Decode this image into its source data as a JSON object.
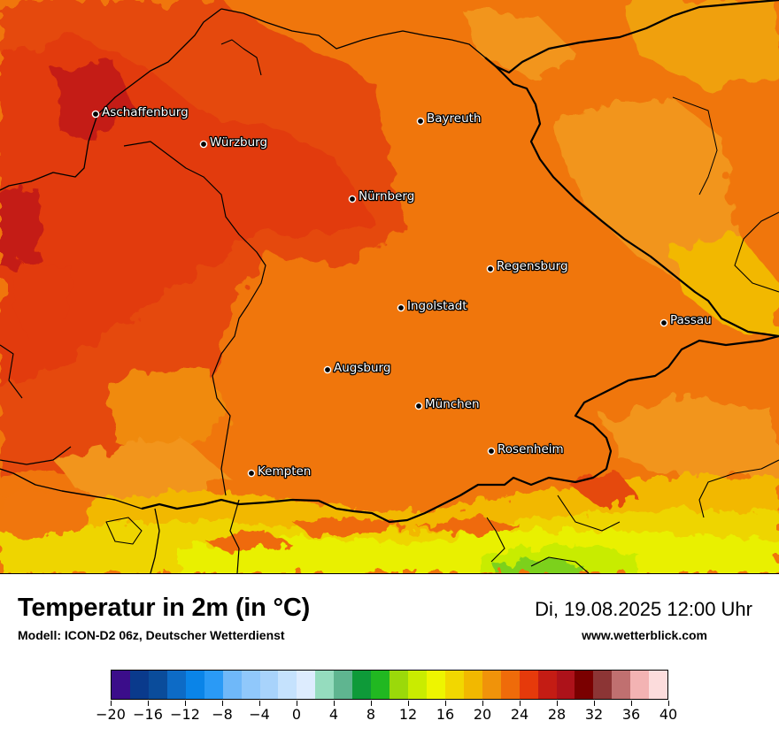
{
  "map": {
    "cities": [
      {
        "name": "Aschaffenburg"
      },
      {
        "name": "Würzburg"
      },
      {
        "name": "Bayreuth"
      },
      {
        "name": "Nürnberg"
      },
      {
        "name": "Regensburg"
      },
      {
        "name": "Ingolstadt"
      },
      {
        "name": "Passau"
      },
      {
        "name": "Augsburg"
      },
      {
        "name": "München"
      },
      {
        "name": "Rosenheim"
      },
      {
        "name": "Kempten"
      }
    ]
  },
  "footer": {
    "title": "Temperatur in 2m (in °C)",
    "subtitle": "Modell: ICON-D2 06z, Deutscher Wetterdienst",
    "datetime": "Di, 19.08.2025 12:00 Uhr",
    "website": "www.wetterblick.com"
  },
  "legend": {
    "colors": [
      "#3b0d8a",
      "#0a3a8c",
      "#0a4c9b",
      "#0d6bc6",
      "#0a84e8",
      "#2a9af6",
      "#6fb8f9",
      "#90c8fb",
      "#a8d3fb",
      "#c5e2fd",
      "#ddecfe",
      "#95dcbe",
      "#5fb590",
      "#0e9a39",
      "#21b821",
      "#9bd90a",
      "#c9ec00",
      "#eef500",
      "#f2d700",
      "#f2b800",
      "#f0930a",
      "#ef6b0a",
      "#e63a0b",
      "#c41c14",
      "#ad121a",
      "#7a0000",
      "#8c3535",
      "#c07070",
      "#f3b3b3",
      "#fcdcdc"
    ],
    "tick_labels": [
      "−20",
      "−16",
      "−12",
      "−8",
      "−4",
      "0",
      "4",
      "8",
      "12",
      "16",
      "20",
      "24",
      "28",
      "32",
      "36",
      "40"
    ],
    "min": -20,
    "max": 40
  }
}
